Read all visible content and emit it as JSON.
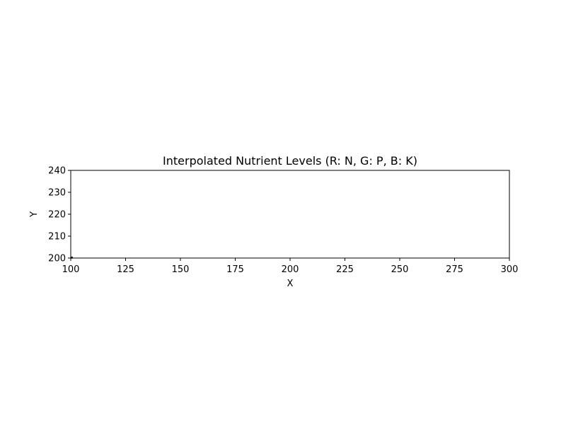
{
  "chart_data": {
    "type": "heatmap",
    "title": "Interpolated Nutrient Levels (R: N, G: P, B: K)",
    "xlabel": "X",
    "ylabel": "Y",
    "xlim": [
      100,
      300
    ],
    "ylim": [
      200,
      240
    ],
    "xticks": [
      "100",
      "125",
      "150",
      "175",
      "200",
      "225",
      "250",
      "275",
      "300"
    ],
    "yticks": [
      "200",
      "210",
      "220",
      "230",
      "240"
    ],
    "grid": false,
    "legend": "none",
    "points": [
      {
        "x": 100.5,
        "y": 200.2
      }
    ]
  },
  "colors": {
    "background": "#ffffff",
    "axes": "#000000",
    "marker": "#000000"
  }
}
